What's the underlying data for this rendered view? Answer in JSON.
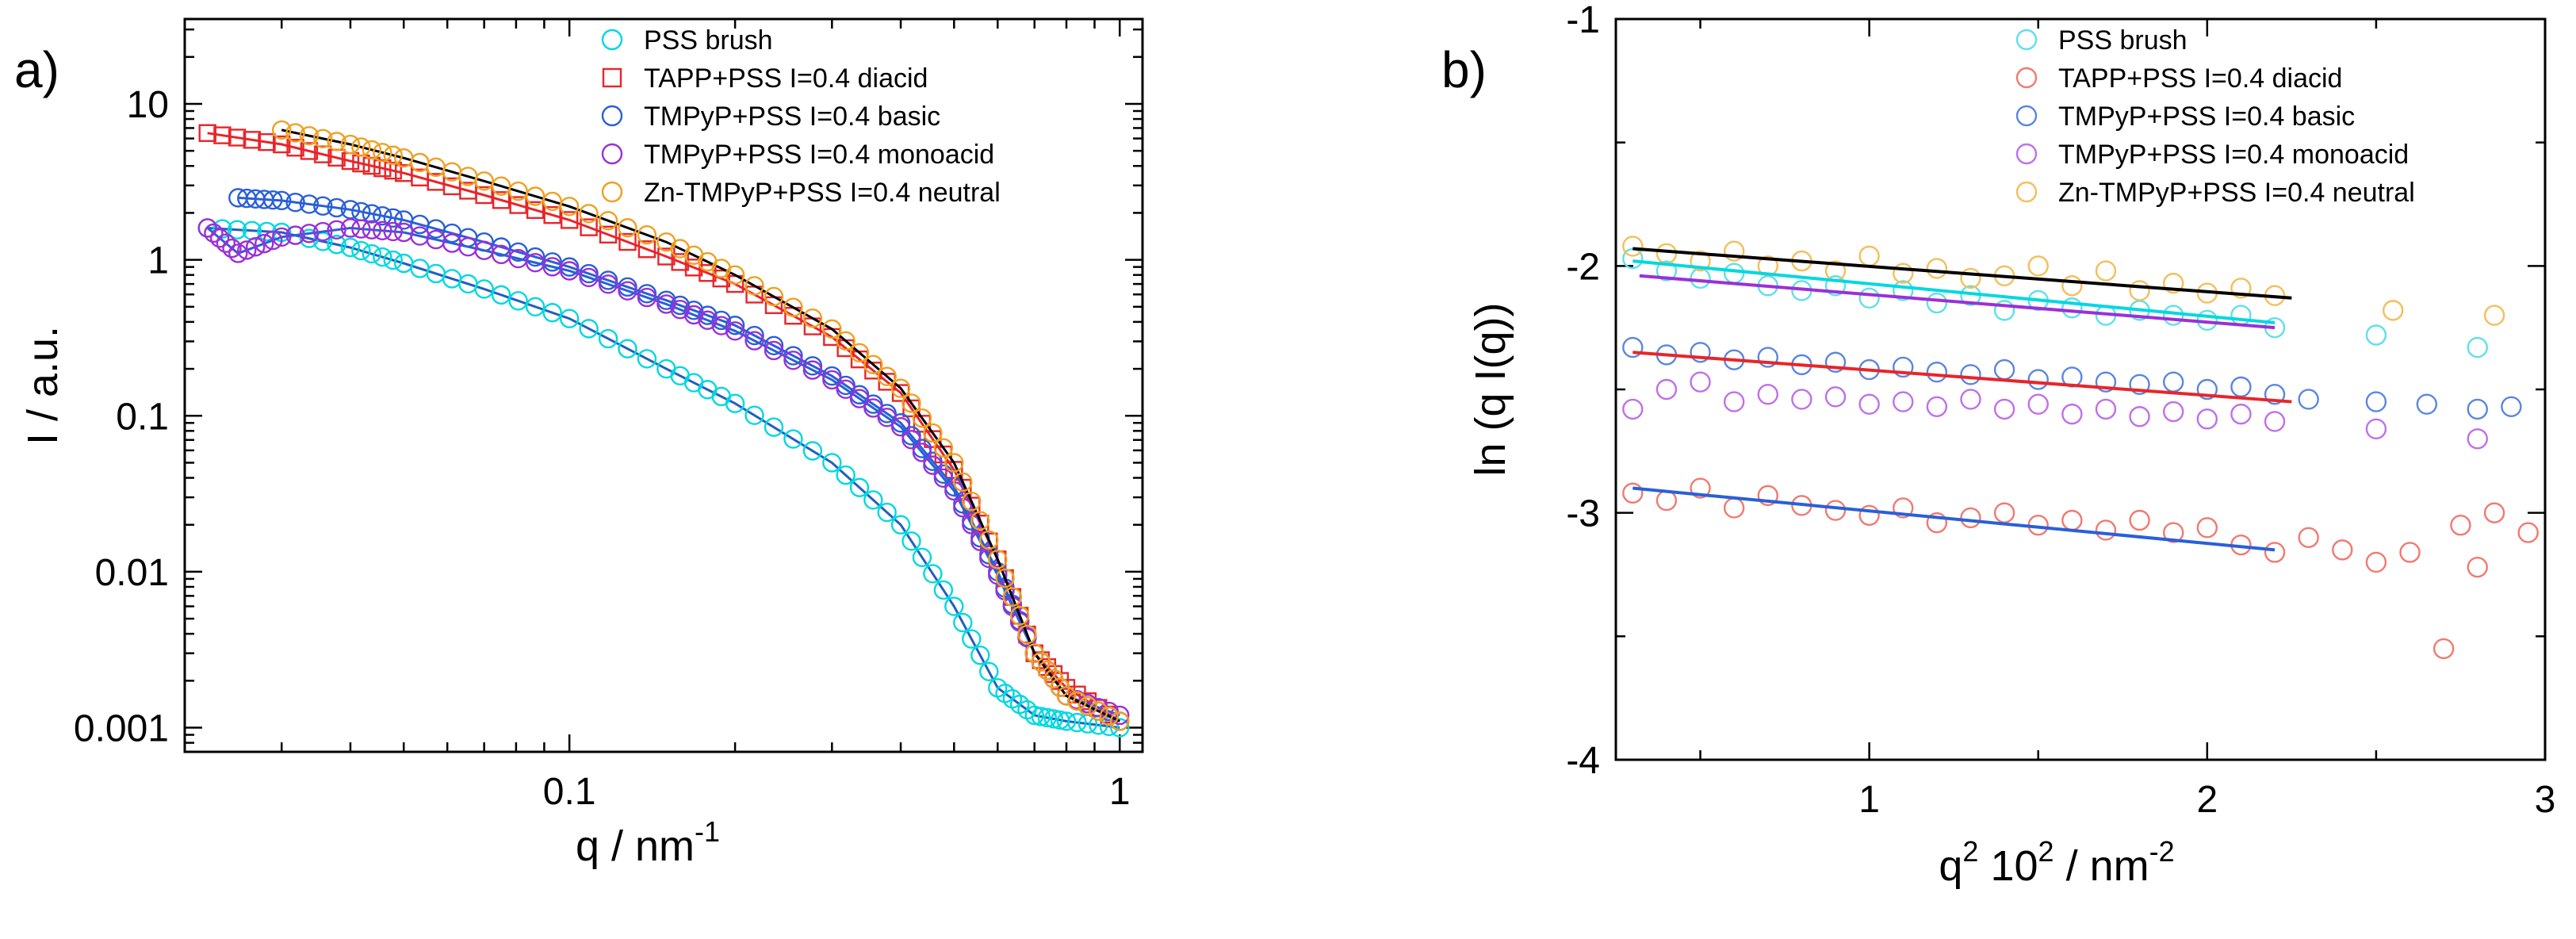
{
  "chart_data": [
    {
      "type": "scatter",
      "panel_label": "a)",
      "xlabel": "q / nm",
      "xlabel_sup": "-1",
      "ylabel": "I / a.u.",
      "xscale": "log",
      "yscale": "log",
      "xlim": [
        0.02,
        1.1
      ],
      "ylim": [
        0.0007,
        35
      ],
      "x_ticks": [
        {
          "value": 0.1,
          "label": "0.1"
        },
        {
          "value": 1,
          "label": "1"
        }
      ],
      "y_ticks": [
        {
          "value": 0.001,
          "label": "0.001"
        },
        {
          "value": 0.01,
          "label": "0.01"
        },
        {
          "value": 0.1,
          "label": "0.1"
        },
        {
          "value": 1,
          "label": "1"
        },
        {
          "value": 10,
          "label": "10"
        }
      ],
      "legend_position": "top-right",
      "series": [
        {
          "name": "PSS brush",
          "color": "#00d8e0",
          "marker": "open-circle",
          "fit_color": "#2060c0",
          "x": [
            0.022,
            0.03,
            0.04,
            0.05,
            0.07,
            0.1,
            0.15,
            0.2,
            0.3,
            0.4,
            0.5,
            0.6,
            0.7,
            0.8,
            1.0
          ],
          "y": [
            1.6,
            1.5,
            1.2,
            0.95,
            0.65,
            0.42,
            0.2,
            0.12,
            0.05,
            0.02,
            0.006,
            0.0018,
            0.0012,
            0.0011,
            0.001
          ]
        },
        {
          "name": "TAPP+PSS I=0.4 diacid",
          "color": "#e8252a",
          "marker": "open-square",
          "fit_color": "#e8252a",
          "x": [
            0.022,
            0.03,
            0.04,
            0.05,
            0.07,
            0.1,
            0.15,
            0.2,
            0.3,
            0.4,
            0.5,
            0.6,
            0.7,
            0.8,
            1.0
          ],
          "y": [
            6.5,
            5.5,
            4.3,
            3.6,
            2.6,
            1.8,
            1.05,
            0.7,
            0.32,
            0.14,
            0.045,
            0.012,
            0.003,
            0.0018,
            0.0011
          ]
        },
        {
          "name": "TMPyP+PSS I=0.4 basic",
          "color": "#2a5fd8",
          "marker": "open-circle",
          "fit_color": "#2a5fd8",
          "x": [
            0.025,
            0.03,
            0.04,
            0.05,
            0.07,
            0.1,
            0.15,
            0.2,
            0.3,
            0.4,
            0.5,
            0.6,
            0.7,
            0.8,
            1.0
          ],
          "y": [
            2.5,
            2.4,
            2.1,
            1.8,
            1.3,
            0.9,
            0.55,
            0.38,
            0.18,
            0.09,
            0.035,
            0.01,
            0.003,
            0.0016,
            0.0011
          ]
        },
        {
          "name": "TMPyP+PSS I=0.4 monoacid",
          "color": "#9a30d8",
          "marker": "open-circle",
          "fit_color": "#2a5fd8",
          "x": [
            0.022,
            0.025,
            0.03,
            0.04,
            0.05,
            0.07,
            0.1,
            0.15,
            0.2,
            0.3,
            0.4,
            0.5,
            0.6,
            0.7,
            0.8,
            1.0
          ],
          "y": [
            1.6,
            1.1,
            1.4,
            1.6,
            1.5,
            1.15,
            0.85,
            0.52,
            0.35,
            0.17,
            0.085,
            0.033,
            0.0095,
            0.003,
            0.0016,
            0.0012
          ]
        },
        {
          "name": "Zn-TMPyP+PSS I=0.4 neutral",
          "color": "#f0a020",
          "marker": "open-circle",
          "fit_color": "#000000",
          "x": [
            0.03,
            0.04,
            0.05,
            0.07,
            0.1,
            0.15,
            0.2,
            0.3,
            0.4,
            0.5,
            0.6,
            0.7,
            0.8,
            1.0
          ],
          "y": [
            6.8,
            5.5,
            4.5,
            3.2,
            2.2,
            1.3,
            0.8,
            0.36,
            0.15,
            0.05,
            0.012,
            0.003,
            0.0016,
            0.0011
          ]
        }
      ]
    },
    {
      "type": "scatter",
      "panel_label": "b)",
      "xlabel": "q",
      "xlabel_sup": "2",
      "xlabel_mid": " 10",
      "xlabel_sup2": "2",
      "xlabel_tail": " / nm",
      "xlabel_sup3": "-2",
      "ylabel": "ln (q I(q))",
      "xlim": [
        0.25,
        3.0
      ],
      "ylim": [
        -4,
        -1
      ],
      "x_ticks": [
        {
          "value": 1,
          "label": "1"
        },
        {
          "value": 2,
          "label": "2"
        },
        {
          "value": 3,
          "label": "3"
        }
      ],
      "y_ticks": [
        {
          "value": -1,
          "label": "-1"
        },
        {
          "value": -2,
          "label": "-2"
        },
        {
          "value": -3,
          "label": "-3"
        },
        {
          "value": -4,
          "label": "-4"
        }
      ],
      "legend_position": "top-right",
      "series": [
        {
          "name": "PSS brush",
          "color": "#5ee0ea",
          "marker": "open-circle",
          "fit_color": "#00d8e0",
          "fit_range": [
            0.3,
            2.2
          ],
          "fit": [
            -1.98,
            -2.23
          ],
          "x": [
            0.3,
            0.4,
            0.5,
            0.6,
            0.7,
            0.8,
            0.9,
            1.0,
            1.1,
            1.2,
            1.3,
            1.4,
            1.5,
            1.6,
            1.7,
            1.8,
            1.9,
            2.0,
            2.1,
            2.2,
            2.5,
            2.8
          ],
          "y": [
            -1.97,
            -2.02,
            -2.05,
            -2.03,
            -2.08,
            -2.1,
            -2.08,
            -2.13,
            -2.1,
            -2.15,
            -2.12,
            -2.18,
            -2.14,
            -2.17,
            -2.2,
            -2.18,
            -2.2,
            -2.22,
            -2.2,
            -2.25,
            -2.28,
            -2.33
          ]
        },
        {
          "name": "TAPP+PSS I=0.4 diacid",
          "color": "#f07a70",
          "marker": "open-circle",
          "fit_color": "#2a5fd8",
          "fit_range": [
            0.3,
            2.2
          ],
          "fit": [
            -2.9,
            -3.15
          ],
          "x": [
            0.3,
            0.4,
            0.5,
            0.6,
            0.7,
            0.8,
            0.9,
            1.0,
            1.1,
            1.2,
            1.3,
            1.4,
            1.5,
            1.6,
            1.7,
            1.8,
            1.9,
            2.0,
            2.1,
            2.2,
            2.3,
            2.4,
            2.5,
            2.6,
            2.7,
            2.75,
            2.8,
            2.85,
            2.95
          ],
          "y": [
            -2.92,
            -2.95,
            -2.9,
            -2.98,
            -2.93,
            -2.97,
            -2.99,
            -3.01,
            -2.98,
            -3.04,
            -3.02,
            -3.0,
            -3.05,
            -3.03,
            -3.07,
            -3.03,
            -3.08,
            -3.06,
            -3.13,
            -3.16,
            -3.1,
            -3.15,
            -3.2,
            -3.16,
            -3.55,
            -3.05,
            -3.22,
            -3.0,
            -3.08
          ]
        },
        {
          "name": "TMPyP+PSS I=0.4 basic",
          "color": "#5a86e0",
          "marker": "open-circle",
          "fit_color": "#e8252a",
          "fit_range": [
            0.3,
            2.25
          ],
          "fit": [
            -2.35,
            -2.55
          ],
          "x": [
            0.3,
            0.4,
            0.5,
            0.6,
            0.7,
            0.8,
            0.9,
            1.0,
            1.1,
            1.2,
            1.3,
            1.4,
            1.5,
            1.6,
            1.7,
            1.8,
            1.9,
            2.0,
            2.1,
            2.2,
            2.3,
            2.5,
            2.65,
            2.8,
            2.9
          ],
          "y": [
            -2.33,
            -2.36,
            -2.35,
            -2.38,
            -2.37,
            -2.4,
            -2.39,
            -2.42,
            -2.41,
            -2.43,
            -2.44,
            -2.42,
            -2.46,
            -2.45,
            -2.47,
            -2.48,
            -2.47,
            -2.5,
            -2.49,
            -2.52,
            -2.54,
            -2.55,
            -2.56,
            -2.58,
            -2.57
          ]
        },
        {
          "name": "TMPyP+PSS I=0.4 monoacid",
          "color": "#c070e8",
          "marker": "open-circle",
          "fit_color": "#9a30d8",
          "fit_range": [
            0.32,
            2.2
          ],
          "fit": [
            -2.04,
            -2.25
          ],
          "x": [
            0.3,
            0.4,
            0.5,
            0.6,
            0.7,
            0.8,
            0.9,
            1.0,
            1.1,
            1.2,
            1.3,
            1.4,
            1.5,
            1.6,
            1.7,
            1.8,
            1.9,
            2.0,
            2.1,
            2.2,
            2.5,
            2.8
          ],
          "y": [
            -2.58,
            -2.5,
            -2.47,
            -2.55,
            -2.52,
            -2.54,
            -2.53,
            -2.56,
            -2.55,
            -2.57,
            -2.54,
            -2.58,
            -2.56,
            -2.6,
            -2.58,
            -2.61,
            -2.59,
            -2.62,
            -2.6,
            -2.63,
            -2.66,
            -2.7
          ]
        },
        {
          "name": "Zn-TMPyP+PSS I=0.4 neutral",
          "color": "#f5be5a",
          "marker": "open-circle",
          "fit_color": "#000000",
          "fit_range": [
            0.3,
            2.25
          ],
          "fit": [
            -1.93,
            -2.13
          ],
          "x": [
            0.3,
            0.4,
            0.5,
            0.6,
            0.7,
            0.8,
            0.9,
            1.0,
            1.1,
            1.2,
            1.3,
            1.4,
            1.5,
            1.6,
            1.7,
            1.8,
            1.9,
            2.0,
            2.1,
            2.2,
            2.55,
            2.85
          ],
          "y": [
            -1.92,
            -1.95,
            -1.98,
            -1.94,
            -2.0,
            -1.98,
            -2.02,
            -1.96,
            -2.03,
            -2.01,
            -2.05,
            -2.04,
            -2.0,
            -2.08,
            -2.02,
            -2.1,
            -2.07,
            -2.11,
            -2.09,
            -2.12,
            -2.18,
            -2.2
          ]
        }
      ]
    }
  ]
}
